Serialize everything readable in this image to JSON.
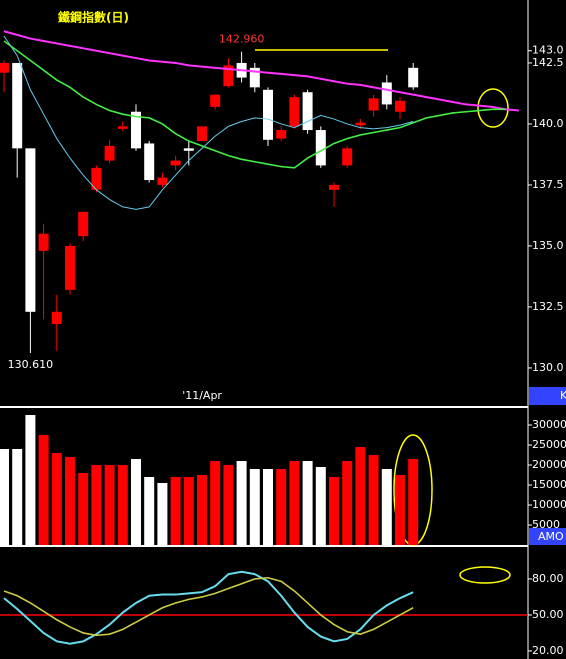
{
  "chart_data": [
    {
      "type": "candlestick",
      "title": "鐵鋼指數(日)",
      "panel_label": "K",
      "x_label": "'11/Apr",
      "x_label_at": 14,
      "up_color": "#ff0000",
      "down_color": "#ffffff",
      "open": [
        142.1,
        142.5,
        139.0,
        134.8,
        131.8,
        133.2,
        135.4,
        137.3,
        138.5,
        139.8,
        140.5,
        139.2,
        137.5,
        138.3,
        139.0,
        139.3,
        140.7,
        141.55,
        142.5,
        142.3,
        141.4,
        139.4,
        139.9,
        141.3,
        139.75,
        137.3,
        138.3,
        139.95,
        140.55,
        141.7,
        140.5,
        142.3
      ],
      "high": [
        142.6,
        142.5,
        139.0,
        135.9,
        133.0,
        135.1,
        136.4,
        138.3,
        139.35,
        140.1,
        140.8,
        139.3,
        138.0,
        138.7,
        139.3,
        139.9,
        141.2,
        142.7,
        142.96,
        142.5,
        141.5,
        139.9,
        141.2,
        141.4,
        139.9,
        137.6,
        139.1,
        140.2,
        141.2,
        142.0,
        141.1,
        142.5
      ],
      "low": [
        141.3,
        137.8,
        130.61,
        132.0,
        130.7,
        133.0,
        135.2,
        137.2,
        138.4,
        139.7,
        138.9,
        137.6,
        137.4,
        138.1,
        138.3,
        139.3,
        140.6,
        141.5,
        141.7,
        141.3,
        139.1,
        139.3,
        139.8,
        139.6,
        138.2,
        136.6,
        138.2,
        139.8,
        140.3,
        140.6,
        140.2,
        141.4
      ],
      "close": [
        142.5,
        139.0,
        132.3,
        135.5,
        132.3,
        135.0,
        136.4,
        138.2,
        139.1,
        139.9,
        139.0,
        137.7,
        137.8,
        138.5,
        138.9,
        139.9,
        141.2,
        142.4,
        141.9,
        141.5,
        139.35,
        139.75,
        141.1,
        139.75,
        138.3,
        137.5,
        139.0,
        140.05,
        141.05,
        140.8,
        140.95,
        141.5
      ],
      "lines": [
        {
          "color": "#ff33ff",
          "values": [
            143.8,
            143.65,
            143.5,
            143.4,
            143.3,
            143.2,
            143.1,
            143.0,
            142.9,
            142.8,
            142.7,
            142.6,
            142.55,
            142.5,
            142.4,
            142.35,
            142.3,
            142.25,
            142.2,
            142.15,
            142.1,
            142.05,
            142.0,
            141.95,
            141.85,
            141.75,
            141.65,
            141.6,
            141.5,
            141.4,
            141.3,
            141.2,
            141.1,
            141.0,
            140.9,
            140.8,
            140.75,
            140.7,
            140.6,
            140.55
          ]
        },
        {
          "color": "#44ee44",
          "values": [
            143.4,
            143.0,
            142.6,
            142.2,
            141.8,
            141.5,
            141.1,
            140.8,
            140.55,
            140.4,
            140.3,
            140.25,
            140.0,
            139.6,
            139.3,
            139.1,
            138.9,
            138.7,
            138.55,
            138.45,
            138.35,
            138.25,
            138.2,
            138.6,
            138.9,
            139.2,
            139.4,
            139.55,
            139.65,
            139.75,
            139.85,
            140.05,
            140.25,
            140.35,
            140.45,
            140.5,
            140.55,
            140.6,
            140.6,
            null
          ]
        },
        {
          "color": "#66ccee",
          "values": [
            143.6,
            142.8,
            141.4,
            140.4,
            139.4,
            138.6,
            137.9,
            137.3,
            136.9,
            136.6,
            136.5,
            136.6,
            137.3,
            137.9,
            138.5,
            139.0,
            139.5,
            139.9,
            140.1,
            140.25,
            140.2,
            140.0,
            139.85,
            140.1,
            140.35,
            140.2,
            140.0,
            139.85,
            139.8,
            139.85,
            139.95,
            140.1,
            null,
            null,
            null,
            null,
            null,
            null,
            null,
            null
          ]
        }
      ],
      "annotations": [
        {
          "text": "142.960",
          "value": 142.96,
          "x": 18,
          "color": "#ff3333",
          "position": "above"
        },
        {
          "text": "130.610",
          "value": 130.61,
          "x": 2,
          "color": "#ffffff",
          "position": "below"
        }
      ],
      "ylim": [
        129.3,
        145.08
      ],
      "yticks": [
        {
          "value": 143,
          "label": "143.0"
        },
        {
          "value": 142.5,
          "label": "142.5"
        },
        {
          "value": 140,
          "label": "140.0"
        },
        {
          "value": 137.5,
          "label": "137.5"
        },
        {
          "value": 135,
          "label": "135.0"
        },
        {
          "value": 132.5,
          "label": "132.5"
        },
        {
          "value": 130,
          "label": "130.0"
        }
      ]
    },
    {
      "type": "bar",
      "panel_label": "AMO",
      "values": [
        24000,
        24000,
        32500,
        27500,
        23000,
        22000,
        18000,
        20000,
        20000,
        20000,
        21500,
        17000,
        15500,
        17000,
        17000,
        17500,
        21000,
        20000,
        21000,
        19000,
        19000,
        19000,
        21000,
        21000,
        19500,
        17000,
        21000,
        24500,
        22500,
        19000,
        17500,
        21500
      ],
      "colors": [
        "#ffffff",
        "#ffffff",
        "#ffffff",
        "#ff0000",
        "#ff0000",
        "#ff0000",
        "#ff0000",
        "#ff0000",
        "#ff0000",
        "#ff0000",
        "#ffffff",
        "#ffffff",
        "#ffffff",
        "#ff0000",
        "#ff0000",
        "#ff0000",
        "#ff0000",
        "#ff0000",
        "#ffffff",
        "#ffffff",
        "#ffffff",
        "#ff0000",
        "#ff0000",
        "#ffffff",
        "#ffffff",
        "#ff0000",
        "#ff0000",
        "#ff0000",
        "#ff0000",
        "#ffffff",
        "#ff0000",
        "#ff0000"
      ],
      "ylim": [
        0,
        34250
      ],
      "yticks": [
        30000,
        25000,
        20000,
        15000,
        10000,
        5000
      ]
    },
    {
      "type": "line",
      "lines": [
        {
          "color": "#66ddee",
          "values": [
            64,
            55,
            45,
            35,
            28,
            26,
            28,
            34,
            42,
            52,
            60,
            66,
            67,
            67,
            68,
            69,
            74,
            84,
            86,
            84,
            78,
            66,
            52,
            40,
            32,
            28,
            30,
            38,
            50,
            58,
            64,
            69
          ]
        },
        {
          "color": "#cccc44",
          "values": [
            70,
            66,
            60,
            53,
            46,
            40,
            35,
            33,
            34,
            38,
            44,
            50,
            56,
            60,
            63,
            65,
            68,
            72,
            76,
            80,
            81,
            78,
            70,
            60,
            50,
            42,
            36,
            34,
            38,
            44,
            50,
            56
          ]
        }
      ],
      "reference_line": 50,
      "reference_color": "#ff0000",
      "ylim": [
        13.3,
        105.8
      ],
      "yticks": [
        {
          "value": 80,
          "label": "80.00"
        },
        {
          "value": 50,
          "label": "50.00"
        },
        {
          "value": 20,
          "label": "20.00"
        }
      ]
    }
  ]
}
